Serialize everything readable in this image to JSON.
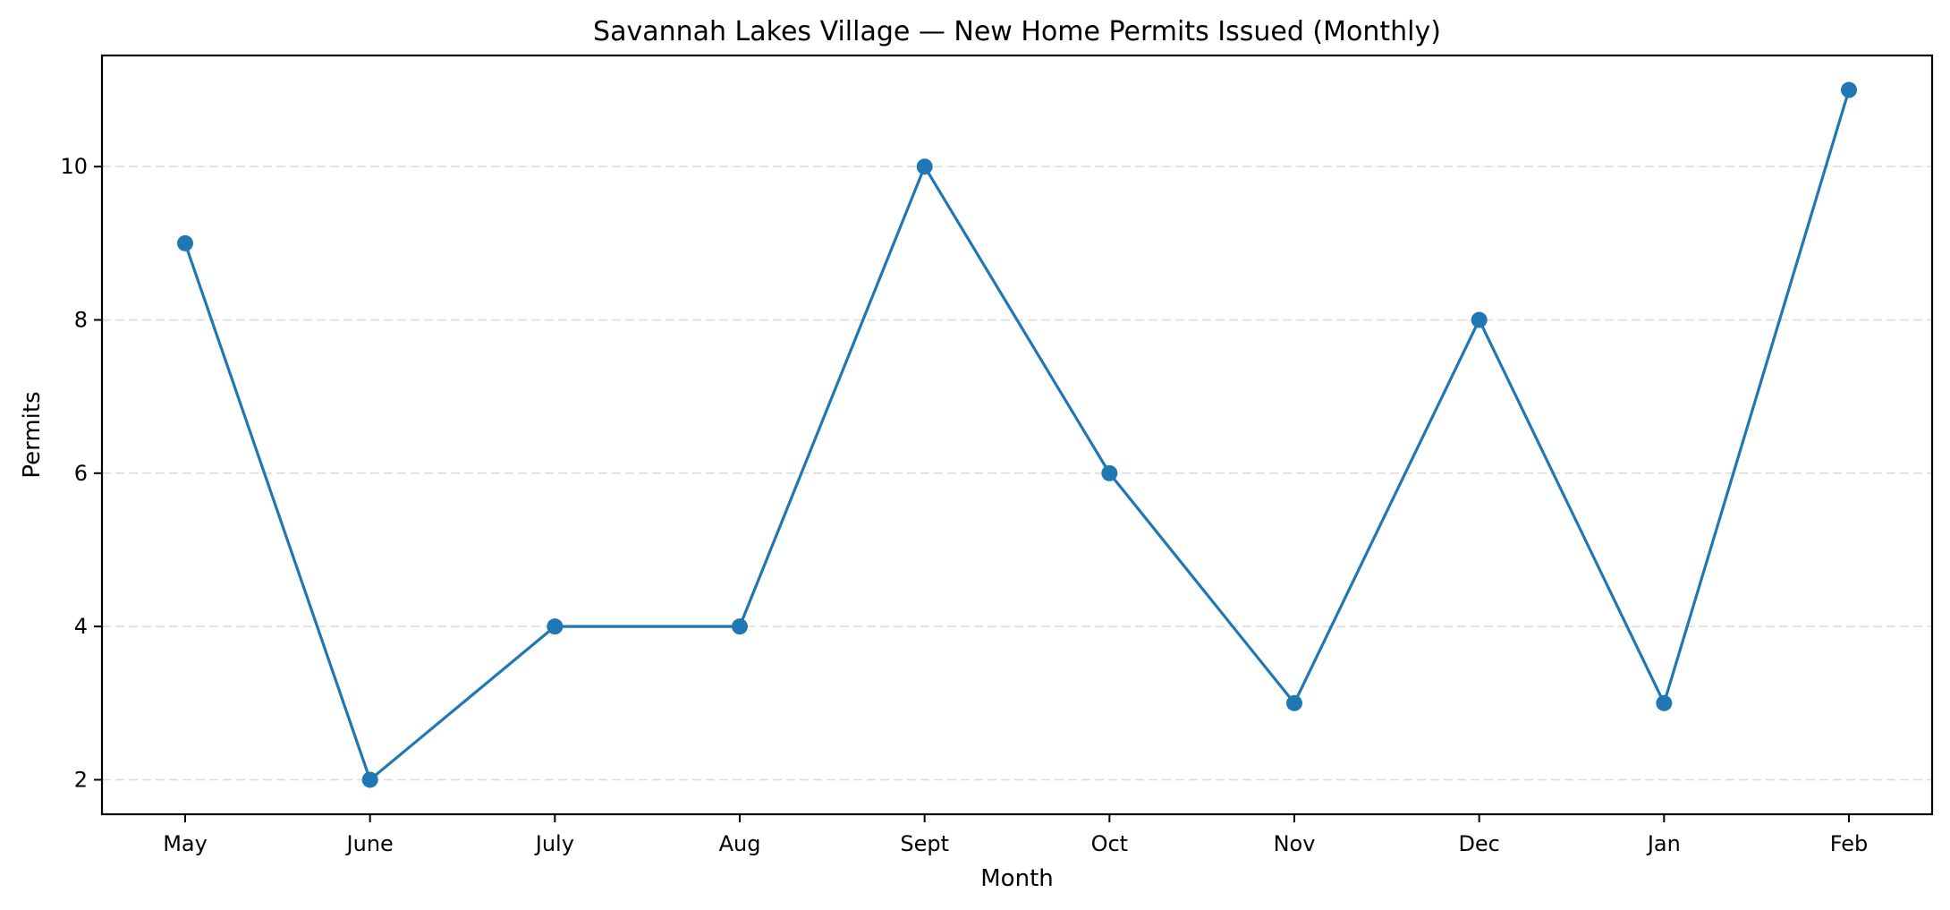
{
  "chart_data": {
    "type": "line",
    "title": "Savannah Lakes Village — New Home Permits Issued (Monthly)",
    "xlabel": "Month",
    "ylabel": "Permits",
    "categories": [
      "May",
      "June",
      "July",
      "Aug",
      "Sept",
      "Oct",
      "Nov",
      "Dec",
      "Jan",
      "Feb"
    ],
    "series": [
      {
        "name": "Permits",
        "values": [
          9,
          2,
          4,
          4,
          10,
          6,
          3,
          8,
          3,
          11
        ],
        "color": "#1f77b4",
        "marker": "circle"
      }
    ],
    "yticks": [
      2,
      4,
      6,
      8,
      10
    ],
    "ylim": [
      1.55,
      11.45
    ],
    "grid": {
      "y": true,
      "x": false,
      "style": "dashed",
      "color": "#dddddd"
    },
    "legend": null
  }
}
